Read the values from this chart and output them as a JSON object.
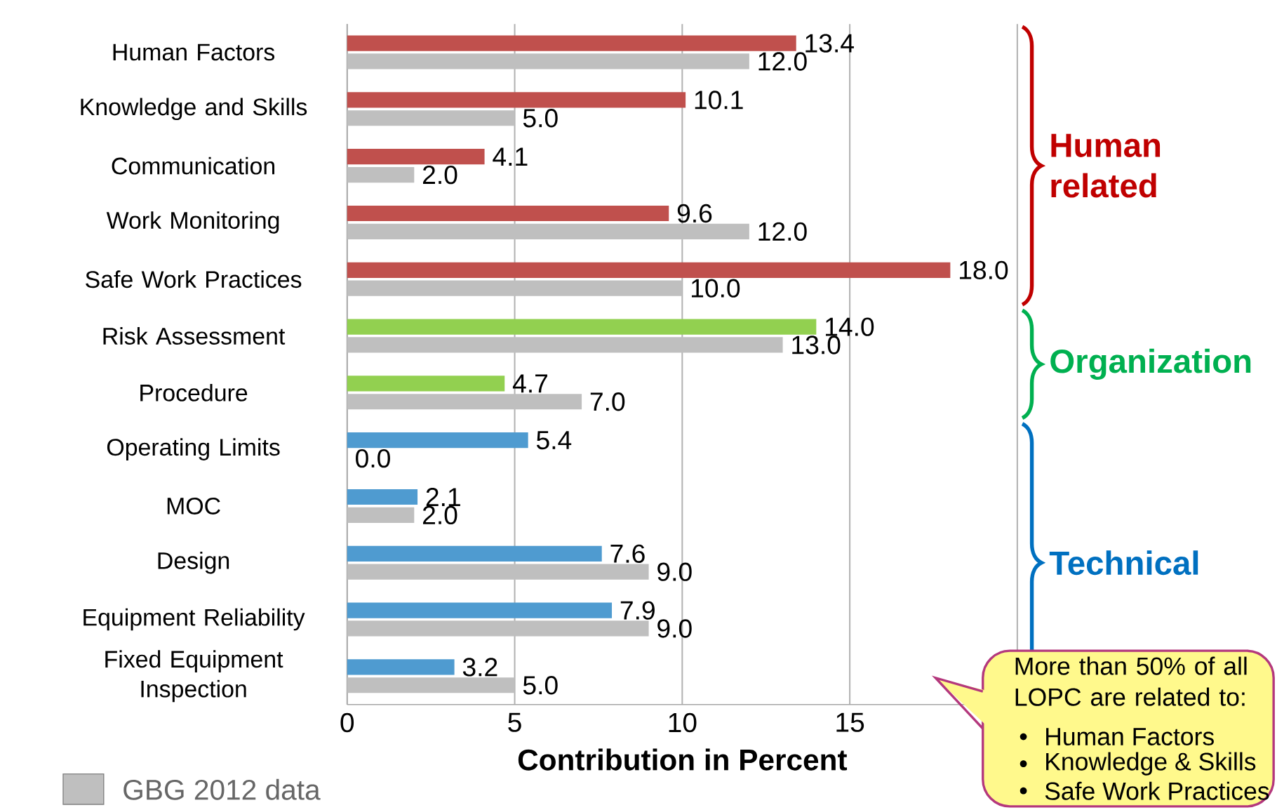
{
  "chart_data": {
    "type": "bar",
    "orientation": "horizontal",
    "categories": [
      "Human Factors",
      "Knowledge and Skills",
      "Communication",
      "Work Monitoring",
      "Safe Work Practices",
      "Risk Assessment",
      "Procedure",
      "Operating Limits",
      "MOC",
      "Design",
      "Equipment Reliability",
      "Fixed Equipment Inspection"
    ],
    "series": [
      {
        "colors": [
          "#c0504d",
          "#c0504d",
          "#c0504d",
          "#c0504d",
          "#c0504d",
          "#92d050",
          "#92d050",
          "#4f9bd0",
          "#4f9bd0",
          "#4f9bd0",
          "#4f9bd0",
          "#4f9bd0"
        ],
        "values": [
          13.4,
          10.1,
          4.1,
          9.6,
          18.0,
          14.0,
          4.7,
          5.4,
          2.1,
          7.6,
          7.9,
          3.2
        ],
        "value_labels": [
          "13.4",
          "10.1",
          "4.1",
          "9.6",
          "18.0",
          "14.0",
          "4.7",
          "5.4",
          "2.1",
          "7.6",
          "7.9",
          "3.2"
        ]
      },
      {
        "name": "GBG 2012 data",
        "color": "#bfbfbf",
        "values": [
          12.0,
          5.0,
          2.0,
          12.0,
          10.0,
          13.0,
          7.0,
          0.0,
          2.0,
          9.0,
          9.0,
          5.0
        ],
        "value_labels": [
          "12.0",
          "5.0",
          "2.0",
          "12.0",
          "10.0",
          "13.0",
          "7.0",
          "0.0",
          "2.0",
          "9.0",
          "9.0",
          "5.0"
        ]
      }
    ],
    "xlabel": "Contribution in Percent",
    "xlim": [
      0,
      20
    ],
    "xticks": [
      0,
      5,
      10,
      15,
      {
        "value": 20,
        "label": null
      }
    ],
    "grid": "x",
    "legend": "bottom left",
    "annotations": [
      "Human related",
      "Organization",
      "Technical",
      "More than 50% of all LOPC are related to:",
      "Human Factors",
      "Knowledge & Skills",
      "Safe Work Practices"
    ]
  }
}
